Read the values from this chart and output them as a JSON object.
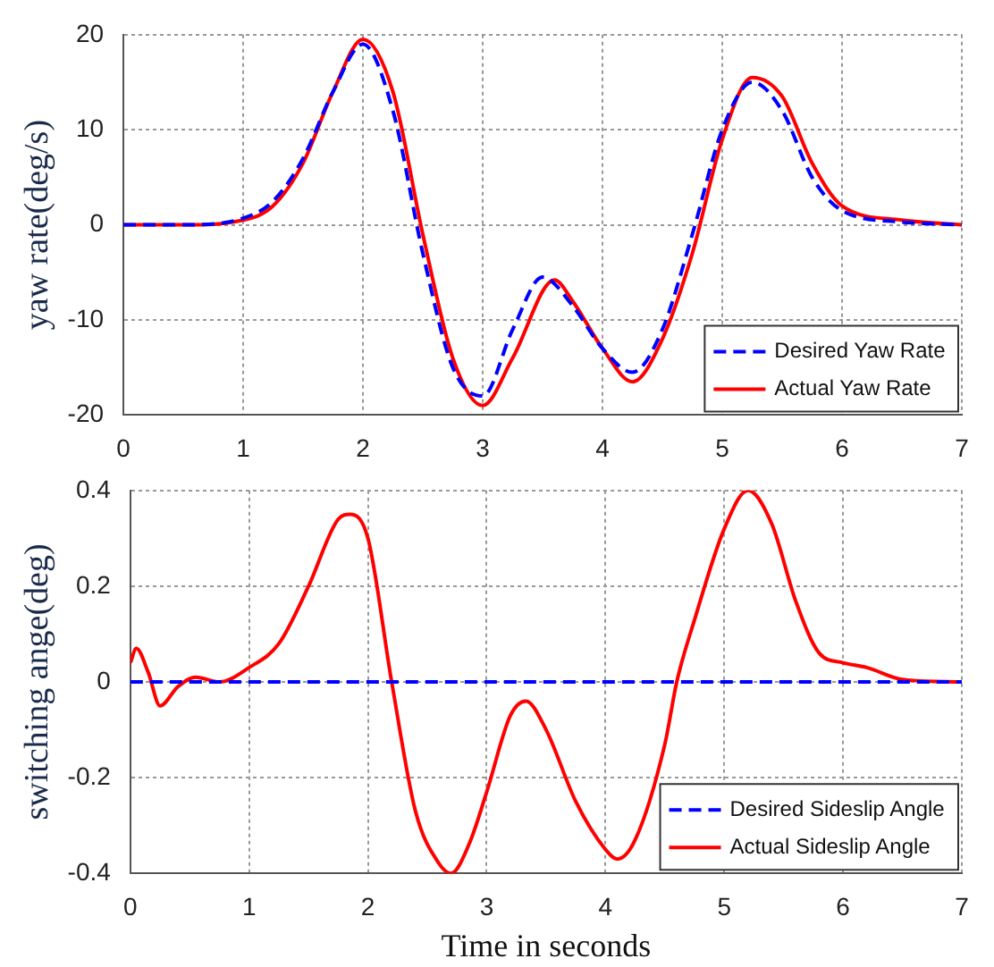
{
  "chart_data": [
    {
      "type": "line",
      "ylabel": "yaw rate(deg/s)",
      "xlim": [
        0,
        7
      ],
      "xticks": [
        0,
        1,
        2,
        3,
        4,
        5,
        6,
        7
      ],
      "ylim": [
        -20,
        20
      ],
      "yticks": [
        -20,
        -10,
        0,
        10,
        20
      ],
      "grid": true,
      "legend": "bottom right",
      "marker": "none",
      "series": [
        {
          "name": "Desired Yaw Rate",
          "color": "#0000ff",
          "line_style": "dashed",
          "x": [
            0,
            0.5,
            1,
            1.25,
            1.5,
            1.75,
            2,
            2.25,
            2.5,
            2.75,
            3,
            3.25,
            3.5,
            3.75,
            4,
            4.25,
            4.5,
            4.75,
            5,
            5.25,
            5.5,
            5.75,
            6,
            6.5,
            7
          ],
          "values": [
            0,
            0,
            0.7,
            2.5,
            7,
            14,
            19,
            12,
            -3,
            -15,
            -18,
            -11,
            -5.5,
            -8.5,
            -13,
            -15.5,
            -11,
            -1,
            10,
            15,
            12,
            5,
            1.5,
            0.3,
            0
          ]
        },
        {
          "name": "Actual Yaw Rate",
          "color": "#ff0000",
          "line_style": "solid",
          "x": [
            0,
            0.5,
            1,
            1.25,
            1.5,
            1.75,
            2,
            2.25,
            2.5,
            2.75,
            3,
            3.25,
            3.6,
            3.75,
            4,
            4.25,
            4.5,
            4.75,
            5,
            5.25,
            5.5,
            5.75,
            6,
            6.5,
            7
          ],
          "values": [
            0,
            0,
            0.5,
            2,
            6.5,
            14,
            19.5,
            14,
            -1,
            -14,
            -19,
            -14,
            -5.8,
            -8,
            -13,
            -16.5,
            -12,
            -3,
            9,
            15.5,
            13.5,
            6.5,
            2,
            0.5,
            0
          ]
        }
      ]
    },
    {
      "type": "line",
      "ylabel": "switching ange(deg)",
      "xlabel": "Time in seconds",
      "xlim": [
        0,
        7
      ],
      "xticks": [
        0,
        1,
        2,
        3,
        4,
        5,
        6,
        7
      ],
      "ylim": [
        -0.4,
        0.4
      ],
      "yticks": [
        -0.4,
        -0.2,
        0,
        0.2,
        0.4
      ],
      "grid": true,
      "legend": "bottom right",
      "marker": "none",
      "series": [
        {
          "name": "Desired Sideslip Angle",
          "color": "#0000ff",
          "line_style": "dashed",
          "x": [
            0,
            7
          ],
          "values": [
            0,
            0
          ]
        },
        {
          "name": "Actual Sideslip Angle",
          "color": "#ff0000",
          "line_style": "solid",
          "x": [
            0,
            0.05,
            0.15,
            0.25,
            0.4,
            0.55,
            0.75,
            1,
            1.25,
            1.5,
            1.75,
            1.85,
            2,
            2.2,
            2.4,
            2.6,
            2.7,
            2.85,
            3,
            3.2,
            3.33,
            3.5,
            3.75,
            4,
            4.1,
            4.25,
            4.5,
            4.6,
            4.75,
            5,
            5.2,
            5.4,
            5.6,
            5.8,
            6,
            6.2,
            6.5,
            7
          ],
          "values": [
            0.04,
            0.07,
            0.02,
            -0.05,
            -0.01,
            0.01,
            0,
            0.03,
            0.08,
            0.2,
            0.34,
            0.35,
            0.3,
            0,
            -0.27,
            -0.38,
            -0.4,
            -0.34,
            -0.23,
            -0.07,
            -0.04,
            -0.1,
            -0.25,
            -0.35,
            -0.37,
            -0.33,
            -0.13,
            0,
            0.13,
            0.32,
            0.4,
            0.33,
            0.17,
            0.06,
            0.04,
            0.03,
            0.005,
            0
          ]
        }
      ]
    }
  ]
}
